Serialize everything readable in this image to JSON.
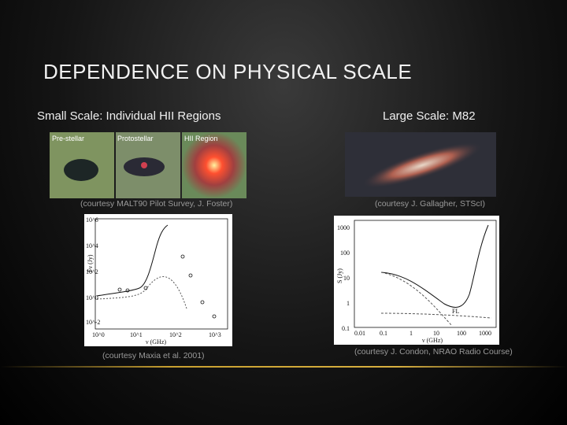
{
  "slide": {
    "title": "DEPENDENCE ON PHYSICAL SCALE",
    "left": {
      "heading": "Small Scale: Individual HII Regions",
      "panels": [
        "Pre-stellar",
        "Protostellar",
        "HII Region"
      ],
      "image_caption": "(courtesy MALT90 Pilot Survey, J. Foster)",
      "plot": {
        "yticks": [
          "10^6",
          "10^4",
          "10^2",
          "10^0",
          "10^-2"
        ],
        "xticks": [
          "10^0",
          "10^1",
          "10^2",
          "10^3"
        ],
        "xlabel": "ν (GHz)",
        "ylabel": "Fν (Jy)"
      },
      "plot_caption": "(courtesy Maxia et al. 2001)"
    },
    "right": {
      "heading": "Large Scale: M82",
      "image_caption": "(courtesy J. Gallagher, STScI)",
      "plot": {
        "yticks": [
          "1000",
          "100",
          "10",
          "1",
          "0.1"
        ],
        "xticks": [
          "0.01",
          "0.1",
          "1",
          "10",
          "100",
          "1000"
        ],
        "xlabel": "ν (GHz)",
        "ylabel": "S (Jy)",
        "annotation": "FL"
      },
      "plot_caption": "(courtesy J. Condon, NRAO Radio Course)"
    }
  }
}
